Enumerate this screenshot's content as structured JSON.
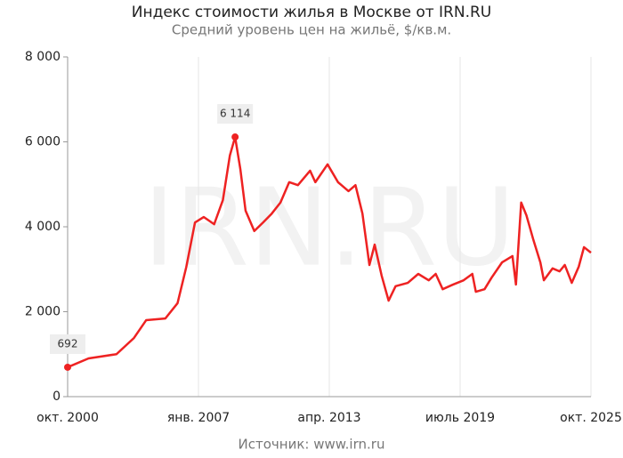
{
  "chart_data": {
    "type": "line",
    "title": "Индекс стоимости жилья в Москве от IRN.RU",
    "subtitle": "Средний уровень цен на жильё, $/кв.м.",
    "source": "Источник: www.irn.ru",
    "watermark": "IRN.RU",
    "x": [
      "2000-10",
      "2001-10",
      "2003-02",
      "2003-12",
      "2004-07",
      "2005-06",
      "2006-01",
      "2006-06",
      "2006-11",
      "2007-04",
      "2007-10",
      "2008-03",
      "2008-07",
      "2008-10",
      "2009-01",
      "2009-04",
      "2009-09",
      "2010-02",
      "2010-07",
      "2010-12",
      "2011-05",
      "2011-10",
      "2012-05",
      "2012-08",
      "2013-03",
      "2013-09",
      "2014-03",
      "2014-07",
      "2014-11",
      "2015-03",
      "2015-06",
      "2015-10",
      "2016-02",
      "2016-06",
      "2017-01",
      "2017-07",
      "2018-01",
      "2018-05",
      "2018-09",
      "2019-03",
      "2019-09",
      "2020-02",
      "2020-04",
      "2020-09",
      "2021-01",
      "2021-07",
      "2022-01",
      "2022-03",
      "2022-06",
      "2022-09",
      "2023-01",
      "2023-05",
      "2023-07",
      "2023-12",
      "2024-04",
      "2024-07",
      "2024-11",
      "2025-03",
      "2025-06",
      "2025-10"
    ],
    "series": [
      {
        "color": "#ee2222",
        "values": [
          692,
          900,
          1000,
          1380,
          1800,
          1840,
          2200,
          3050,
          4100,
          4230,
          4060,
          4630,
          5680,
          6114,
          5360,
          4380,
          3900,
          4100,
          4310,
          4570,
          5050,
          4980,
          5320,
          5050,
          5470,
          5050,
          4840,
          4980,
          4310,
          3100,
          3580,
          2850,
          2260,
          2600,
          2680,
          2890,
          2740,
          2890,
          2530,
          2640,
          2740,
          2890,
          2470,
          2530,
          2800,
          3160,
          3310,
          2640,
          4570,
          4270,
          3690,
          3160,
          2740,
          3020,
          2950,
          3100,
          2680,
          3060,
          3520,
          3390
        ],
        "value_labels": [
          "692",
          null,
          null,
          null,
          null,
          null,
          null,
          null,
          null,
          null,
          null,
          null,
          null,
          "6 114",
          null,
          null,
          null,
          null,
          null,
          null,
          null,
          null,
          null,
          null,
          null,
          null,
          null,
          null,
          null,
          null,
          null,
          null,
          null,
          null,
          null,
          null,
          null,
          null,
          null,
          null,
          null,
          null,
          null,
          null,
          null,
          null,
          null,
          null,
          null,
          null,
          null,
          null,
          null,
          null,
          null,
          null,
          null,
          null,
          null,
          null
        ]
      }
    ],
    "xlim": [
      "2000-10",
      "2025-10"
    ],
    "xticks": [
      {
        "value": "2000-10",
        "label": "окт. 2000"
      },
      {
        "value": "2007-01",
        "label": "янв. 2007"
      },
      {
        "value": "2013-04",
        "label": "апр. 2013"
      },
      {
        "value": "2019-07",
        "label": "июль 2019"
      },
      {
        "value": "2025-10",
        "label": "окт. 2025"
      }
    ],
    "ylim": [
      0,
      8000
    ],
    "yticks": [
      0,
      {
        "value": 2000,
        "label": "2 000"
      },
      {
        "value": 4000,
        "label": "4 000"
      },
      {
        "value": 6000,
        "label": "6 000"
      },
      {
        "value": 8000,
        "label": "8 000"
      }
    ],
    "grid": true
  }
}
